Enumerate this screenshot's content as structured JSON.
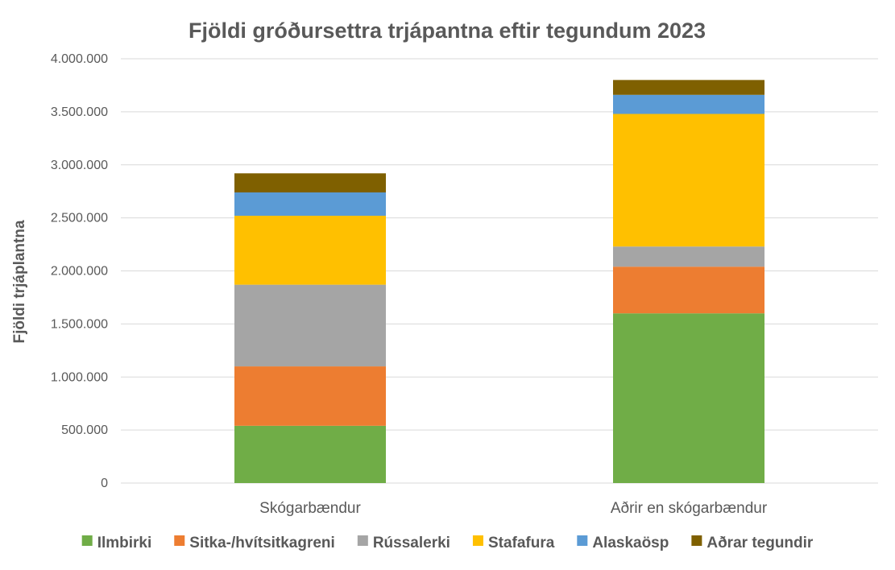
{
  "chart_data": {
    "type": "bar",
    "stacked": true,
    "title": "Fjöldi gróðursettra trjápantna eftir tegundum 2023",
    "xlabel": "",
    "ylabel": "Fjöldi  trjáplantna",
    "ylim": [
      0,
      4000000
    ],
    "ytick_step": 500000,
    "yticks": [
      "0",
      "500.000",
      "1.000.000",
      "1.500.000",
      "2.000.000",
      "2.500.000",
      "3.000.000",
      "3.500.000",
      "4.000.000"
    ],
    "grid": true,
    "legend_position": "bottom",
    "categories": [
      "Skógarbændur",
      "Aðrir en skógarbændur"
    ],
    "series": [
      {
        "name": "Ilmbirki",
        "color": "#70ad47",
        "values": [
          540000,
          1600000
        ]
      },
      {
        "name": "Sitka-/hvítsitkagreni",
        "color": "#ed7d31",
        "values": [
          560000,
          440000
        ]
      },
      {
        "name": "Rússalerki",
        "color": "#a5a5a5",
        "values": [
          770000,
          190000
        ]
      },
      {
        "name": "Stafafura",
        "color": "#ffc000",
        "values": [
          650000,
          1250000
        ]
      },
      {
        "name": "Alaskaösp",
        "color": "#5b9bd5",
        "values": [
          220000,
          180000
        ]
      },
      {
        "name": "Aðrar tegundir",
        "color": "#7f6000",
        "values": [
          180000,
          140000
        ]
      }
    ]
  }
}
